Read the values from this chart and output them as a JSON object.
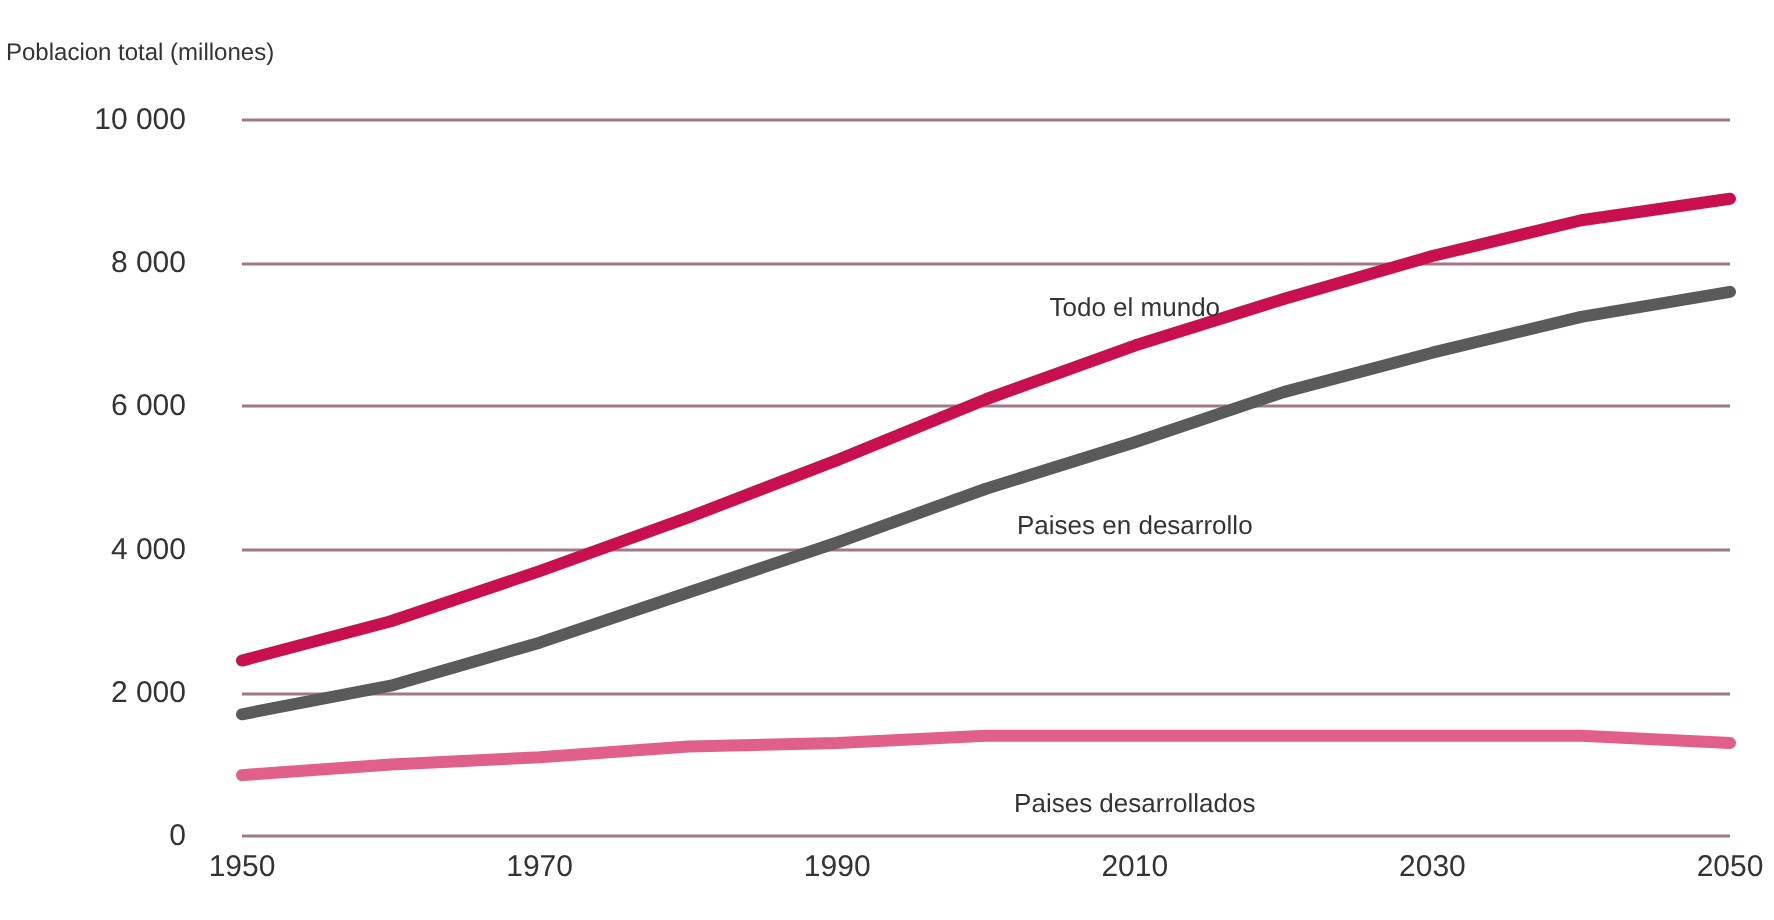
{
  "chart_data": {
    "type": "line",
    "ylabel": "Poblacion total (millones)",
    "x": [
      1950,
      1960,
      1970,
      1980,
      1990,
      2000,
      2010,
      2020,
      2030,
      2040,
      2050
    ],
    "series": [
      {
        "name": "Todo el mundo",
        "color": "#c8104e",
        "values": [
          2450,
          3000,
          3700,
          4450,
          5250,
          6100,
          6850,
          7500,
          8100,
          8600,
          8900
        ]
      },
      {
        "name": "Paises en desarrollo",
        "color": "#5a5a5a",
        "values": [
          1700,
          2100,
          2700,
          3400,
          4100,
          4850,
          5500,
          6200,
          6750,
          7250,
          7600
        ]
      },
      {
        "name": "Paises desarrollados",
        "color": "#e0608a",
        "values": [
          850,
          1000,
          1100,
          1250,
          1300,
          1400,
          1400,
          1400,
          1400,
          1400,
          1300
        ]
      }
    ],
    "xlim": [
      1950,
      2050
    ],
    "xticks": [
      1950,
      1970,
      1990,
      2010,
      2030,
      2050
    ],
    "ylim": [
      0,
      10000
    ],
    "yticks": [
      0,
      {
        "value": 2000,
        "label": "2 000"
      },
      {
        "value": 4000,
        "label": "4 000"
      },
      {
        "value": 6000,
        "label": "6 000"
      },
      {
        "value": 8000,
        "label": "8 000"
      },
      {
        "value": 10000,
        "label": "10 000"
      }
    ],
    "grid": "y",
    "legend": false,
    "marker": "none",
    "line_style": "solid"
  }
}
